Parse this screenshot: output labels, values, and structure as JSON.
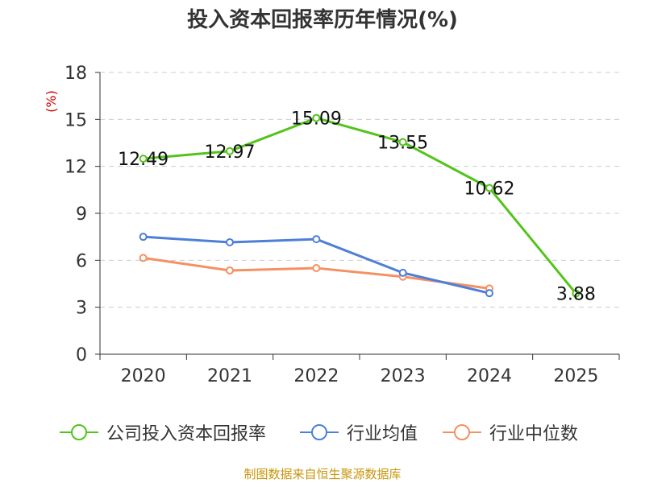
{
  "chart_data": {
    "type": "line",
    "title": "投入资本回报率历年情况(%)",
    "ylabel": "(%)",
    "xlabel": "",
    "categories": [
      "2020",
      "2021",
      "2022",
      "2023",
      "2024",
      "2025"
    ],
    "ylim": [
      0,
      18
    ],
    "yticks": [
      0,
      3,
      6,
      9,
      12,
      15,
      18
    ],
    "grid": true,
    "legend_position": "bottom",
    "series": [
      {
        "name": "公司投入资本回报率",
        "color": "#52c41a",
        "values": [
          12.49,
          12.97,
          15.09,
          13.55,
          10.62,
          3.88
        ],
        "labels": [
          "12.49",
          "12.97",
          "15.09",
          "13.55",
          "10.62",
          "3.88"
        ]
      },
      {
        "name": "行业均值",
        "color": "#4e7fd8",
        "values": [
          7.5,
          7.15,
          7.35,
          5.2,
          3.9,
          null
        ]
      },
      {
        "name": "行业中位数",
        "color": "#f59063",
        "values": [
          6.15,
          5.35,
          5.5,
          4.95,
          4.2,
          null
        ]
      }
    ]
  },
  "source": "制图数据来自恒生聚源数据库"
}
